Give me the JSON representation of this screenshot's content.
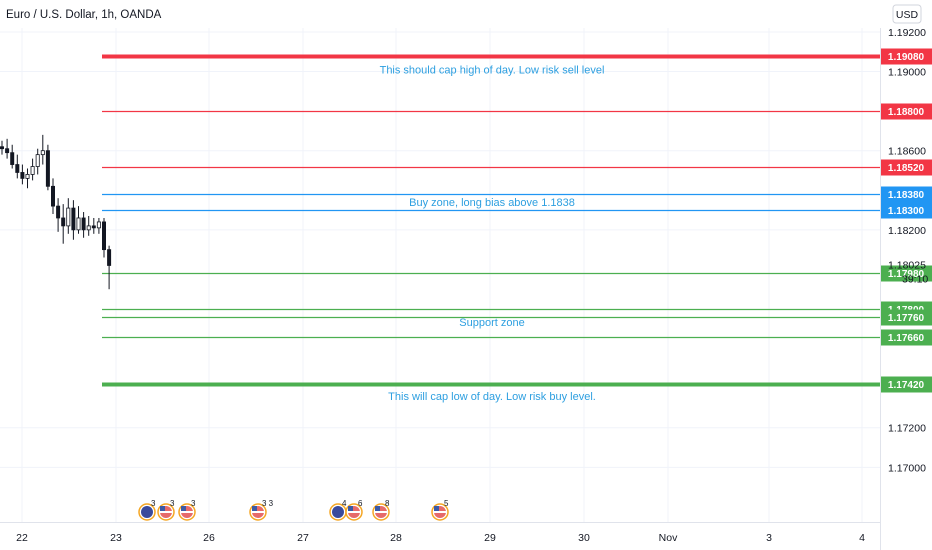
{
  "header": {
    "title": "Euro / U.S. Dollar, 1h, OANDA",
    "currency_button": "USD"
  },
  "colors": {
    "red": "#f23645",
    "blue": "#2196f3",
    "green": "#4caf50",
    "annotation": "#2d9fe0",
    "candle": "#131722"
  },
  "chart_data": {
    "type": "candlestick",
    "title": "Euro / U.S. Dollar, 1h, OANDA",
    "ylim": [
      1.1685,
      1.1922
    ],
    "y_ticks": [
      "1.19200",
      "1.19000",
      "1.18600",
      "1.18200",
      "1.17200",
      "1.17000"
    ],
    "x_ticks": [
      "22",
      "23",
      "26",
      "27",
      "28",
      "29",
      "30",
      "Nov",
      "3",
      "4"
    ],
    "x_tick_pos": [
      0,
      1,
      2,
      3,
      4,
      5,
      6,
      7,
      8,
      9
    ],
    "current_price": "1.18025",
    "countdown": "39:10",
    "levels": [
      {
        "price": 1.1908,
        "label": "1.19080",
        "color": "red",
        "thick": true
      },
      {
        "price": 1.188,
        "label": "1.18800",
        "color": "red",
        "thick": false
      },
      {
        "price": 1.1852,
        "label": "1.18520",
        "color": "red",
        "thick": false
      },
      {
        "price": 1.1838,
        "label": "1.18380",
        "color": "blue",
        "thick": false
      },
      {
        "price": 1.183,
        "label": "1.18300",
        "color": "blue",
        "thick": false
      },
      {
        "price": 1.1798,
        "label": "1.17980",
        "color": "green",
        "thick": false
      },
      {
        "price": 1.178,
        "label": "1.17800",
        "color": "green",
        "thick": false
      },
      {
        "price": 1.1776,
        "label": "1.17760",
        "color": "green",
        "thick": false
      },
      {
        "price": 1.1766,
        "label": "1.17660",
        "color": "green",
        "thick": false
      },
      {
        "price": 1.1742,
        "label": "1.17420",
        "color": "green",
        "thick": true
      }
    ],
    "annotations": [
      {
        "text": "This should cap high of day. Low risk sell level",
        "price": 1.1901
      },
      {
        "text": "Buy zone, long bias above 1.1838",
        "price": 1.1834
      },
      {
        "text": "Support zone",
        "price": 1.17735
      },
      {
        "text": "This will cap low of day. Low risk buy level.",
        "price": 1.1736
      }
    ],
    "candles": [
      [
        1.1862,
        1.1865,
        1.1858,
        1.1861
      ],
      [
        1.1861,
        1.1866,
        1.1856,
        1.1859
      ],
      [
        1.1859,
        1.1863,
        1.1851,
        1.1853
      ],
      [
        1.1853,
        1.1858,
        1.1846,
        1.1849
      ],
      [
        1.1849,
        1.1853,
        1.1843,
        1.1846
      ],
      [
        1.1846,
        1.1851,
        1.1841,
        1.1848
      ],
      [
        1.1848,
        1.1856,
        1.1845,
        1.1852
      ],
      [
        1.1852,
        1.1861,
        1.1848,
        1.1858
      ],
      [
        1.1858,
        1.1868,
        1.1853,
        1.186
      ],
      [
        1.186,
        1.1863,
        1.184,
        1.1842
      ],
      [
        1.1842,
        1.1846,
        1.1828,
        1.1832
      ],
      [
        1.1832,
        1.1836,
        1.1819,
        1.1826
      ],
      [
        1.1826,
        1.1833,
        1.1813,
        1.1822
      ],
      [
        1.1822,
        1.1836,
        1.1818,
        1.1831
      ],
      [
        1.1831,
        1.1835,
        1.1815,
        1.182
      ],
      [
        1.182,
        1.1832,
        1.1818,
        1.1826
      ],
      [
        1.1826,
        1.1829,
        1.1816,
        1.182
      ],
      [
        1.182,
        1.1827,
        1.1817,
        1.1822
      ],
      [
        1.1822,
        1.1826,
        1.1818,
        1.1821
      ],
      [
        1.1821,
        1.1826,
        1.1818,
        1.1824
      ],
      [
        1.1824,
        1.1826,
        1.1806,
        1.181
      ],
      [
        1.181,
        1.1812,
        1.179,
        1.1802
      ]
    ],
    "events": [
      {
        "label": "3",
        "flag": "eu"
      },
      {
        "label": "3",
        "flag": "us"
      },
      {
        "label": "3",
        "flag": "us"
      },
      {
        "label": "3 3",
        "flag": "us"
      },
      {
        "label": "4",
        "flag": "eu"
      },
      {
        "label": "6",
        "flag": "us"
      },
      {
        "label": "8",
        "flag": "us"
      },
      {
        "label": "5",
        "flag": "us"
      }
    ]
  }
}
